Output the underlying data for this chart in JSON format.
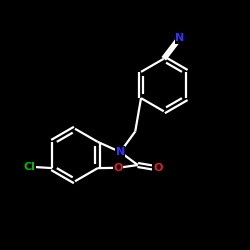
{
  "background_color": "#000000",
  "bond_color": "#ffffff",
  "atom_colors": {
    "N_nitrile": "#3333ff",
    "N_ring": "#3333ff",
    "O": "#dd2222",
    "Cl": "#00bb00",
    "C": "#ffffff"
  },
  "line_width": 1.6,
  "figsize": [
    2.5,
    2.5
  ],
  "dpi": 100
}
